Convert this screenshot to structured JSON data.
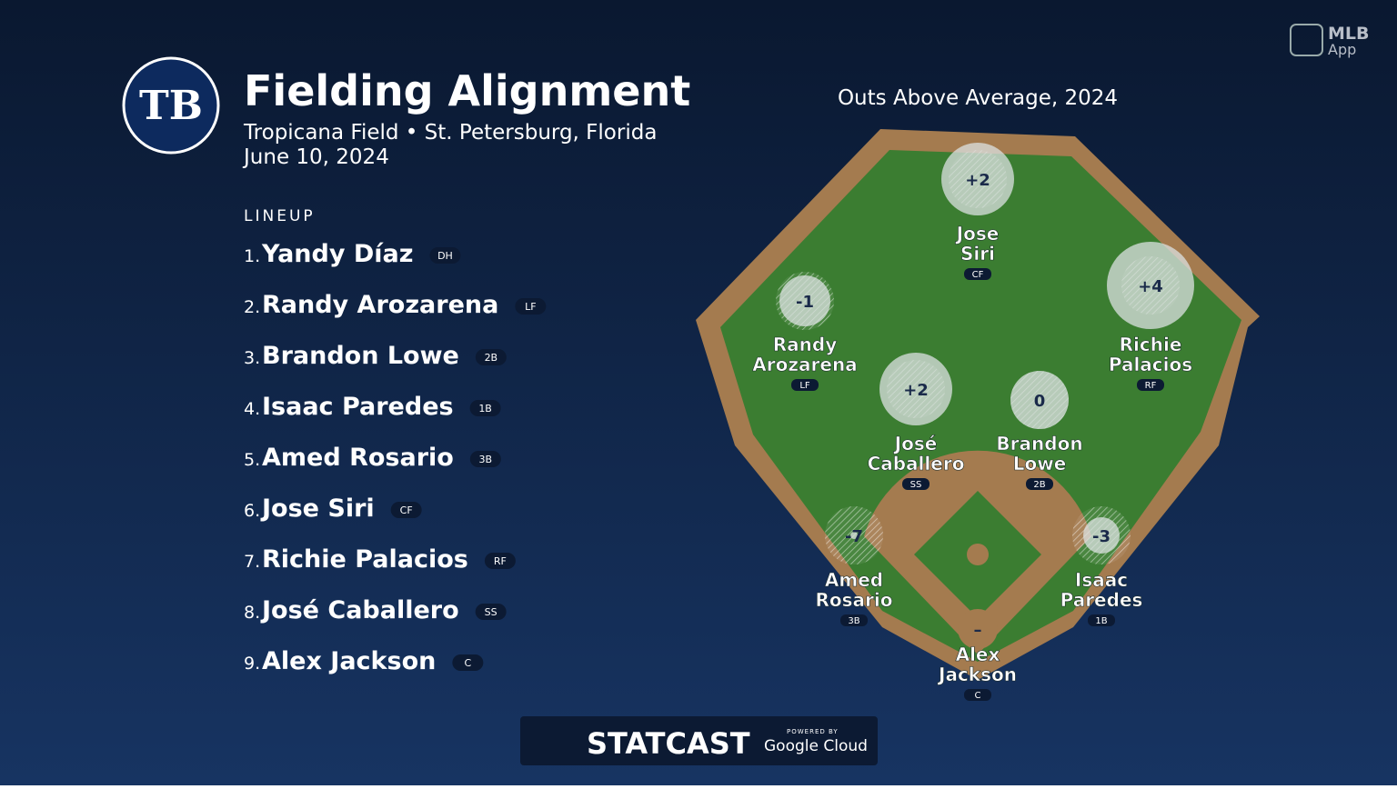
{
  "header": {
    "logo": "TB",
    "title": "Fielding Alignment",
    "subtitle": "Tropicana Field • St. Petersburg, Florida",
    "date": "June 10, 2024",
    "app_badge": [
      "MLB",
      "App"
    ]
  },
  "lineup": {
    "heading": "LINEUP",
    "items": [
      {
        "number": "1.",
        "name": "Yandy Díaz",
        "position": "DH"
      },
      {
        "number": "2.",
        "name": "Randy Arozarena",
        "position": "LF"
      },
      {
        "number": "3.",
        "name": "Brandon Lowe",
        "position": "2B"
      },
      {
        "number": "4.",
        "name": "Isaac Paredes",
        "position": "1B"
      },
      {
        "number": "5.",
        "name": "Amed Rosario",
        "position": "3B"
      },
      {
        "number": "6.",
        "name": "Jose Siri",
        "position": "CF"
      },
      {
        "number": "7.",
        "name": "Richie Palacios",
        "position": "RF"
      },
      {
        "number": "8.",
        "name": "José Caballero",
        "position": "SS"
      },
      {
        "number": "9.",
        "name": "Alex Jackson",
        "position": "C"
      }
    ]
  },
  "field": {
    "title": "Outs Above Average, 2024",
    "players": [
      {
        "name_lines": [
          "Jose",
          "Siri"
        ],
        "position": "CF",
        "oaa": 2,
        "oaa_label": "+2"
      },
      {
        "name_lines": [
          "Randy",
          "Arozarena"
        ],
        "position": "LF",
        "oaa": -1,
        "oaa_label": "-1"
      },
      {
        "name_lines": [
          "Richie",
          "Palacios"
        ],
        "position": "RF",
        "oaa": 4,
        "oaa_label": "+4"
      },
      {
        "name_lines": [
          "José",
          "Caballero"
        ],
        "position": "SS",
        "oaa": 2,
        "oaa_label": "+2"
      },
      {
        "name_lines": [
          "Brandon",
          "Lowe"
        ],
        "position": "2B",
        "oaa": 0,
        "oaa_label": "0"
      },
      {
        "name_lines": [
          "Amed",
          "Rosario"
        ],
        "position": "3B",
        "oaa": -7,
        "oaa_label": "-7"
      },
      {
        "name_lines": [
          "Isaac",
          "Paredes"
        ],
        "position": "1B",
        "oaa": -3,
        "oaa_label": "-3"
      },
      {
        "name_lines": [
          "Alex",
          "Jackson"
        ],
        "position": "C",
        "oaa": null,
        "oaa_label": "–"
      }
    ]
  },
  "footer": {
    "powered_by": "POWERED BY",
    "brand": "STATCAST",
    "partner": "Google Cloud"
  }
}
